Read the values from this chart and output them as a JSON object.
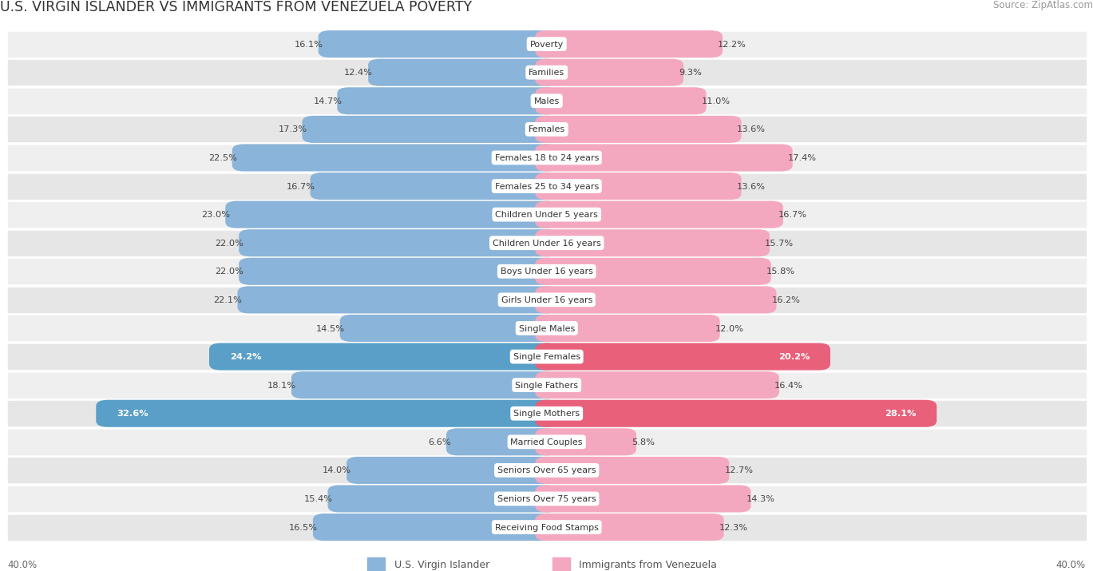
{
  "title": "U.S. VIRGIN ISLANDER VS IMMIGRANTS FROM VENEZUELA POVERTY",
  "source": "Source: ZipAtlas.com",
  "categories": [
    "Poverty",
    "Families",
    "Males",
    "Females",
    "Females 18 to 24 years",
    "Females 25 to 34 years",
    "Children Under 5 years",
    "Children Under 16 years",
    "Boys Under 16 years",
    "Girls Under 16 years",
    "Single Males",
    "Single Females",
    "Single Fathers",
    "Single Mothers",
    "Married Couples",
    "Seniors Over 65 years",
    "Seniors Over 75 years",
    "Receiving Food Stamps"
  ],
  "left_values": [
    16.1,
    12.4,
    14.7,
    17.3,
    22.5,
    16.7,
    23.0,
    22.0,
    22.0,
    22.1,
    14.5,
    24.2,
    18.1,
    32.6,
    6.6,
    14.0,
    15.4,
    16.5
  ],
  "right_values": [
    12.2,
    9.3,
    11.0,
    13.6,
    17.4,
    13.6,
    16.7,
    15.7,
    15.8,
    16.2,
    12.0,
    20.2,
    16.4,
    28.1,
    5.8,
    12.7,
    14.3,
    12.3
  ],
  "left_color": "#8ab4d9",
  "right_color": "#f4a8bf",
  "row_bg_even": "#efefef",
  "row_bg_odd": "#e6e6e6",
  "row_sep_color": "#ffffff",
  "axis_max": 40.0,
  "left_label": "U.S. Virgin Islander",
  "right_label": "Immigrants from Venezuela",
  "left_color_legend": "#8ab4d9",
  "right_color_legend": "#f4a8bf",
  "highlight_rows": [
    11,
    13
  ],
  "highlight_left_color": "#5a9fc8",
  "highlight_right_color": "#e8607a",
  "title_color": "#333333",
  "source_color": "#999999",
  "value_color": "#444444",
  "label_color": "#333333"
}
